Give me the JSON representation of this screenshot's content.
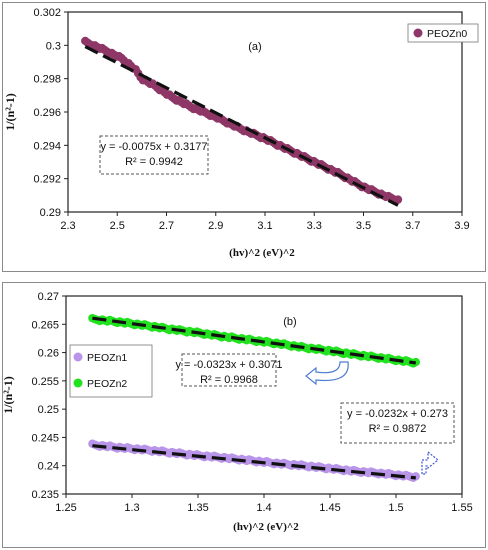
{
  "chart_data": [
    {
      "type": "scatter",
      "panel_label": "(a)",
      "xlabel": "(hv)^2 (eV)^2",
      "ylabel": "1/(n²-1)",
      "xlim": [
        2.3,
        3.9
      ],
      "ylim": [
        0.29,
        0.302
      ],
      "xticks": [
        2.3,
        2.5,
        2.7,
        2.9,
        3.1,
        3.3,
        3.5,
        3.7,
        3.9
      ],
      "xtick_labels": [
        "2.3",
        "2.5",
        "2.7",
        "2.9",
        "3.1",
        "3.3",
        "3.5",
        "3.7",
        "3.9"
      ],
      "yticks": [
        0.29,
        0.292,
        0.294,
        0.296,
        0.298,
        0.3,
        0.302
      ],
      "ytick_labels": [
        "0.29",
        "0.292",
        "0.294",
        "0.296",
        "0.298",
        "0.3",
        "0.302"
      ],
      "grid": false,
      "legend_position": "top-right",
      "series": [
        {
          "name": "PEOZn0",
          "color": "#8e3767",
          "x": [
            2.37,
            2.45,
            2.52,
            2.57,
            2.6,
            2.65,
            2.72,
            2.8,
            2.9,
            3.0,
            3.1,
            3.2,
            3.3,
            3.4,
            3.5,
            3.58,
            3.64
          ],
          "y": [
            0.3002,
            0.2997,
            0.2992,
            0.2986,
            0.298,
            0.2976,
            0.2969,
            0.2963,
            0.2957,
            0.295,
            0.2944,
            0.2937,
            0.293,
            0.2923,
            0.2915,
            0.291,
            0.2907
          ]
        }
      ],
      "trendlines": [
        {
          "slope": -0.0075,
          "intercept": 0.3177,
          "x_range": [
            2.37,
            3.64
          ],
          "color": "#111111"
        }
      ],
      "annotations": [
        {
          "lines": [
            "y = -0.0075x + 0.3177",
            "R² = 0.9942"
          ]
        }
      ]
    },
    {
      "type": "scatter",
      "panel_label": "(b)",
      "xlabel": "(hv)^2 (eV)^2",
      "ylabel": "1/(n²-1)",
      "xlim": [
        1.25,
        1.55
      ],
      "ylim": [
        0.235,
        0.27
      ],
      "xticks": [
        1.25,
        1.3,
        1.35,
        1.4,
        1.45,
        1.5,
        1.55
      ],
      "xtick_labels": [
        "1.25",
        "1.3",
        "1.35",
        "1.4",
        "1.45",
        "1.5",
        "1.55"
      ],
      "yticks": [
        0.235,
        0.24,
        0.245,
        0.25,
        0.255,
        0.26,
        0.265,
        0.27
      ],
      "ytick_labels": [
        "0.235",
        "0.24",
        "0.245",
        "0.25",
        "0.255",
        "0.26",
        "0.265",
        "0.27"
      ],
      "grid": false,
      "legend_position": "middle-left",
      "series": [
        {
          "name": "PEOZn1",
          "color": "#b995e9",
          "x": [
            1.27,
            1.29,
            1.31,
            1.33,
            1.35,
            1.37,
            1.39,
            1.41,
            1.43,
            1.45,
            1.47,
            1.49,
            1.515
          ],
          "y": [
            0.2437,
            0.2432,
            0.2428,
            0.2423,
            0.2418,
            0.2414,
            0.2409,
            0.2404,
            0.24,
            0.2395,
            0.239,
            0.2386,
            0.238
          ]
        },
        {
          "name": "PEOZn2",
          "color": "#22e21f",
          "x": [
            1.27,
            1.29,
            1.31,
            1.33,
            1.35,
            1.37,
            1.39,
            1.41,
            1.43,
            1.45,
            1.47,
            1.49,
            1.515
          ],
          "y": [
            0.2659,
            0.2654,
            0.2648,
            0.2641,
            0.2635,
            0.2628,
            0.2622,
            0.2616,
            0.2609,
            0.2603,
            0.2596,
            0.259,
            0.2582
          ]
        }
      ],
      "trendlines": [
        {
          "slope": -0.0232,
          "intercept": 0.273,
          "x_range": [
            1.27,
            1.515
          ],
          "color": "#111111"
        },
        {
          "slope": -0.0323,
          "intercept": 0.3071,
          "x_range": [
            1.27,
            1.515
          ],
          "color": "#111111"
        }
      ],
      "annotations": [
        {
          "lines": [
            "y = -0.0323x + 0.3071",
            "R² = 0.9968"
          ]
        },
        {
          "lines": [
            "y = -0.0232x + 0.273",
            "R² = 0.9872"
          ]
        }
      ]
    }
  ]
}
